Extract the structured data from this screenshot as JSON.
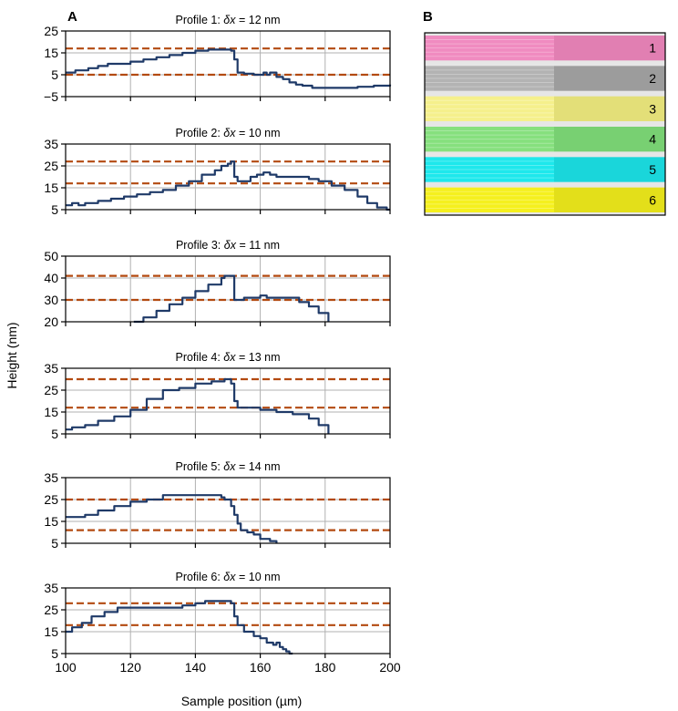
{
  "figure": {
    "panel_a_letter": "A",
    "panel_b_letter": "B",
    "shared_xlabel": "Sample position (µm)",
    "shared_ylabel": "Height (nm)",
    "x_ticks": [
      "100",
      "120",
      "140",
      "160",
      "180",
      "200"
    ]
  },
  "chart_data": [
    {
      "type": "line",
      "title": "Profile 1: δx = 12 nm",
      "title_parts": [
        "Profile 1: ",
        "δx",
        " = 12 nm"
      ],
      "xlim": [
        100,
        200
      ],
      "ylim": [
        -5,
        25
      ],
      "yticks": [
        -5,
        5,
        15,
        25
      ],
      "ytick_labels": [
        "−5",
        "5",
        "15",
        "25"
      ],
      "grid": true,
      "reference_lines": [
        17,
        5
      ],
      "series": [
        {
          "name": "profile",
          "color": "#1f3a68",
          "x": [
            100,
            103,
            107,
            110,
            113,
            117,
            120,
            124,
            128,
            132,
            136,
            140,
            144,
            148,
            150,
            151,
            152,
            153,
            155,
            158,
            161,
            162,
            163,
            165,
            167,
            169,
            171,
            173,
            176,
            180,
            185,
            190,
            195,
            200
          ],
          "y": [
            6,
            7,
            8,
            9,
            10,
            10,
            11,
            12,
            13,
            14,
            15,
            16,
            16.5,
            16.5,
            16.5,
            16,
            12,
            6,
            5.5,
            5,
            6,
            5,
            6,
            4,
            3,
            1.5,
            0.5,
            0,
            -1,
            -1,
            -1,
            -0.5,
            0,
            0.5
          ]
        }
      ]
    },
    {
      "type": "line",
      "title": "Profile 2: δx = 10 nm",
      "title_parts": [
        "Profile 2: ",
        "δx",
        " = 10 nm"
      ],
      "xlim": [
        100,
        200
      ],
      "ylim": [
        5,
        35
      ],
      "yticks": [
        5,
        15,
        25,
        35
      ],
      "ytick_labels": [
        "5",
        "15",
        "25",
        "35"
      ],
      "grid": true,
      "reference_lines": [
        27,
        17
      ],
      "series": [
        {
          "name": "profile",
          "color": "#1f3a68",
          "x": [
            100,
            102,
            104,
            106,
            108,
            110,
            114,
            118,
            122,
            126,
            130,
            134,
            138,
            142,
            146,
            148,
            150,
            151,
            152,
            153,
            155,
            157,
            159,
            161,
            163,
            165,
            170,
            175,
            178,
            182,
            186,
            190,
            193,
            196,
            199,
            200
          ],
          "y": [
            7,
            8,
            7,
            8,
            8,
            9,
            10,
            11,
            12,
            13,
            14,
            16,
            18,
            21,
            23,
            25,
            26,
            27,
            20,
            18,
            18,
            20,
            21,
            22,
            21,
            20,
            20,
            19,
            18,
            16,
            14,
            11,
            8,
            6,
            5,
            5
          ]
        }
      ]
    },
    {
      "type": "line",
      "title": "Profile 3: δx = 11 nm",
      "title_parts": [
        "Profile 3: ",
        "δx",
        " = 11 nm"
      ],
      "xlim": [
        100,
        200
      ],
      "ylim": [
        20,
        50
      ],
      "yticks": [
        20,
        30,
        40,
        50
      ],
      "ytick_labels": [
        "20",
        "30",
        "40",
        "50"
      ],
      "grid": true,
      "reference_lines": [
        41,
        30
      ],
      "series": [
        {
          "name": "profile",
          "color": "#1f3a68",
          "x": [
            121,
            124,
            128,
            132,
            136,
            140,
            144,
            148,
            149,
            150,
            151,
            152,
            153,
            155,
            158,
            160,
            162,
            165,
            168,
            172,
            175,
            178,
            181
          ],
          "y": [
            20,
            22,
            25,
            28,
            31,
            34,
            37,
            40,
            41,
            41,
            41,
            30,
            30,
            31,
            31,
            32,
            31,
            31,
            31,
            29,
            27,
            24,
            20
          ]
        }
      ]
    },
    {
      "type": "line",
      "title": "Profile 4: δx = 13 nm",
      "title_parts": [
        "Profile 4: ",
        "δx",
        " = 13 nm"
      ],
      "xlim": [
        100,
        200
      ],
      "ylim": [
        5,
        35
      ],
      "yticks": [
        5,
        15,
        25,
        35
      ],
      "ytick_labels": [
        "5",
        "15",
        "25",
        "35"
      ],
      "grid": true,
      "reference_lines": [
        30,
        17
      ],
      "series": [
        {
          "name": "profile",
          "color": "#1f3a68",
          "x": [
            100,
            102,
            106,
            110,
            115,
            120,
            125,
            130,
            135,
            140,
            145,
            149,
            150,
            151,
            152,
            153,
            155,
            160,
            165,
            170,
            175,
            178,
            181
          ],
          "y": [
            7,
            8,
            9,
            11,
            13,
            16,
            21,
            25,
            26,
            28,
            29,
            30,
            30,
            28,
            20,
            17,
            17,
            16,
            15,
            14,
            12,
            9,
            5
          ]
        }
      ]
    },
    {
      "type": "line",
      "title": "Profile 5: δx = 14 nm",
      "title_parts": [
        "Profile 5: ",
        "δx",
        " = 14 nm"
      ],
      "xlim": [
        100,
        200
      ],
      "ylim": [
        5,
        35
      ],
      "yticks": [
        5,
        15,
        25,
        35
      ],
      "ytick_labels": [
        "5",
        "15",
        "25",
        "35"
      ],
      "grid": true,
      "reference_lines": [
        25,
        11
      ],
      "series": [
        {
          "name": "profile",
          "color": "#1f3a68",
          "x": [
            100,
            103,
            106,
            110,
            115,
            120,
            125,
            130,
            135,
            140,
            145,
            148,
            149,
            150,
            151,
            152,
            153,
            154,
            156,
            158,
            160,
            163,
            165
          ],
          "y": [
            17,
            17,
            18,
            20,
            22,
            24,
            25,
            27,
            27,
            27,
            27,
            26,
            25,
            25,
            22,
            18,
            14,
            11,
            10,
            9,
            7,
            6,
            5
          ]
        }
      ]
    },
    {
      "type": "line",
      "title": "Profile 6: δx = 10 nm",
      "title_parts": [
        "Profile 6: ",
        "δx",
        " = 10 nm"
      ],
      "xlim": [
        100,
        200
      ],
      "ylim": [
        5,
        35
      ],
      "yticks": [
        5,
        15,
        25,
        35
      ],
      "ytick_labels": [
        "5",
        "15",
        "25",
        "35"
      ],
      "grid": true,
      "reference_lines": [
        28,
        18
      ],
      "series": [
        {
          "name": "profile",
          "color": "#1f3a68",
          "x": [
            100,
            102,
            105,
            108,
            112,
            116,
            120,
            124,
            128,
            132,
            136,
            140,
            143,
            146,
            149,
            151,
            152,
            153,
            155,
            158,
            160,
            162,
            164,
            165,
            166,
            167,
            168,
            169,
            170
          ],
          "y": [
            15,
            17,
            19,
            22,
            24,
            26,
            26,
            26,
            26,
            26,
            27,
            28,
            29,
            29,
            29,
            28,
            22,
            18,
            15,
            13,
            12,
            10,
            9,
            10,
            8,
            7,
            6,
            5,
            5
          ]
        }
      ]
    }
  ],
  "strips": {
    "colors": [
      "#f08bc0",
      "#b3b3b3",
      "#f5f08c",
      "#86e07e",
      "#1ee8ec",
      "#f5f01e"
    ],
    "shadows": [
      "#e17fb2",
      "#9c9c9c",
      "#e3df78",
      "#78d072",
      "#1ad6da",
      "#e3df1a"
    ],
    "labels": [
      "1",
      "2",
      "3",
      "4",
      "5",
      "6"
    ]
  }
}
